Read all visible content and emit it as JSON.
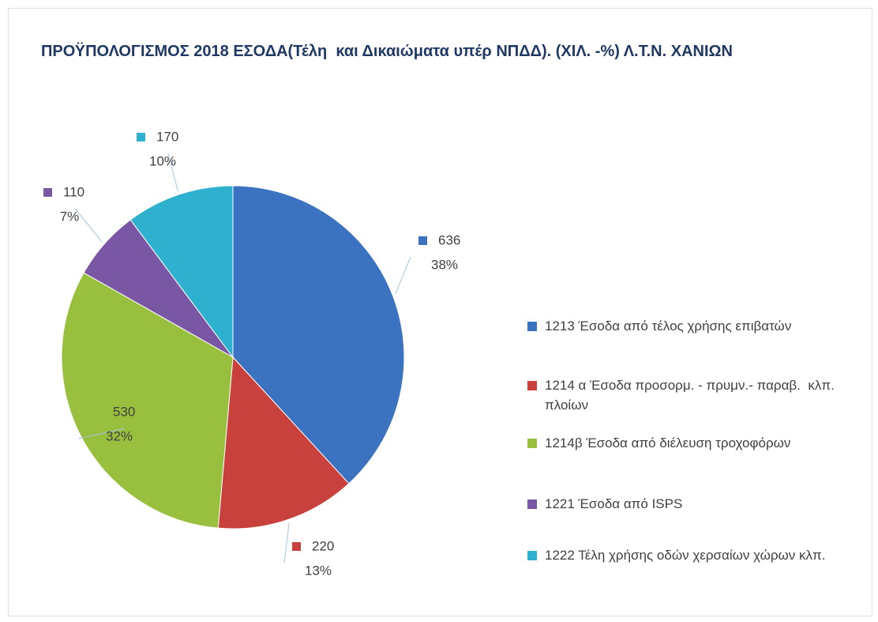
{
  "chart_data": {
    "type": "pie",
    "title": "ΠΡΟΫΠΟΛΟΓΙΣΜΟΣ 2018 ΕΣΟΔΑ(Τέλη  και Δικαιώματα υπέρ ΝΠΔΔ). (ΧΙΛ. -%) Λ.Τ.Ν. ΧΑΝΙΩΝ",
    "categories": [
      "1213 Έσοδα από τέλος χρήσης επιβατών",
      "1214 α Έσοδα προσορμ. - πρυμν.- παραβ.  κλπ. πλοίων",
      "1214β Έσοδα από διέλευση τροχοφόρων",
      "1221 Έσοδα από ISPS",
      "1222 Τέλη χρήσης οδών χερσαίων χώρων κλπ."
    ],
    "values": [
      636,
      220,
      530,
      110,
      170
    ],
    "percents": [
      38,
      13,
      32,
      7,
      10
    ],
    "percent_labels": [
      "38%",
      "13%",
      "32%",
      "7%",
      "10%"
    ],
    "colors": [
      "#3c73c1",
      "#c9413d",
      "#98bf3e",
      "#7a57a5",
      "#2eb1cf"
    ],
    "legend": "right"
  }
}
